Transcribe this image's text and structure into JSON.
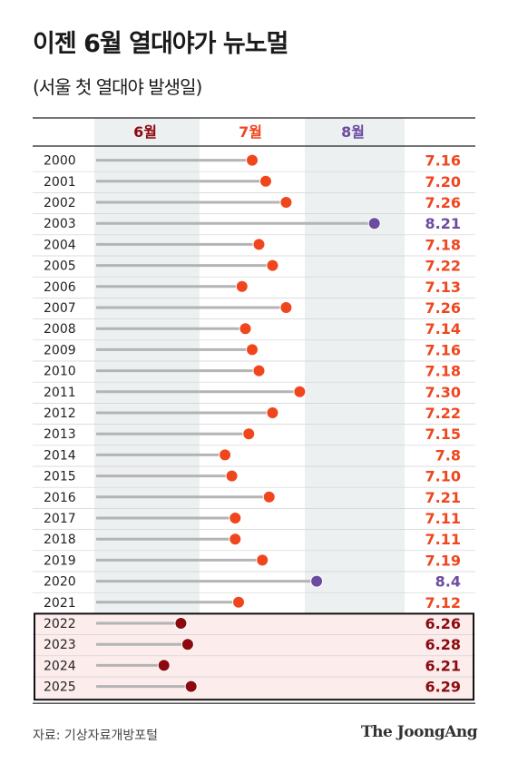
{
  "header": {
    "title": "이젠 6월 열대야가 뉴노멀",
    "subtitle": "(서울 첫 열대야 발생일)"
  },
  "footer": {
    "source": "자료: 기상자료개방포털",
    "brand": "The JoongAng"
  },
  "colors": {
    "june": "#8b0a10",
    "july": "#f0461e",
    "august": "#6b4ca0",
    "stem": "#b4b4b4",
    "band_gray": "#edf0f0",
    "band_pink": "#fcecec",
    "highlight_border": "#111111"
  },
  "chart_data": {
    "type": "dot-plot",
    "month_headers": [
      "6월",
      "7월",
      "8월"
    ],
    "highlighted_rows": [
      "2022",
      "2023",
      "2024",
      "2025"
    ],
    "rows": [
      {
        "year": "2000",
        "month": 7,
        "day": 16,
        "label": "7.16"
      },
      {
        "year": "2001",
        "month": 7,
        "day": 20,
        "label": "7.20"
      },
      {
        "year": "2002",
        "month": 7,
        "day": 26,
        "label": "7.26"
      },
      {
        "year": "2003",
        "month": 8,
        "day": 21,
        "label": "8.21"
      },
      {
        "year": "2004",
        "month": 7,
        "day": 18,
        "label": "7.18"
      },
      {
        "year": "2005",
        "month": 7,
        "day": 22,
        "label": "7.22"
      },
      {
        "year": "2006",
        "month": 7,
        "day": 13,
        "label": "7.13"
      },
      {
        "year": "2007",
        "month": 7,
        "day": 26,
        "label": "7.26"
      },
      {
        "year": "2008",
        "month": 7,
        "day": 14,
        "label": "7.14"
      },
      {
        "year": "2009",
        "month": 7,
        "day": 16,
        "label": "7.16"
      },
      {
        "year": "2010",
        "month": 7,
        "day": 18,
        "label": "7.18"
      },
      {
        "year": "2011",
        "month": 7,
        "day": 30,
        "label": "7.30"
      },
      {
        "year": "2012",
        "month": 7,
        "day": 22,
        "label": "7.22"
      },
      {
        "year": "2013",
        "month": 7,
        "day": 15,
        "label": "7.15"
      },
      {
        "year": "2014",
        "month": 7,
        "day": 8,
        "label": "7.8"
      },
      {
        "year": "2015",
        "month": 7,
        "day": 10,
        "label": "7.10"
      },
      {
        "year": "2016",
        "month": 7,
        "day": 21,
        "label": "7.21"
      },
      {
        "year": "2017",
        "month": 7,
        "day": 11,
        "label": "7.11"
      },
      {
        "year": "2018",
        "month": 7,
        "day": 11,
        "label": "7.11"
      },
      {
        "year": "2019",
        "month": 7,
        "day": 19,
        "label": "7.19"
      },
      {
        "year": "2020",
        "month": 8,
        "day": 4,
        "label": "8.4"
      },
      {
        "year": "2021",
        "month": 7,
        "day": 12,
        "label": "7.12"
      },
      {
        "year": "2022",
        "month": 6,
        "day": 26,
        "label": "6.26"
      },
      {
        "year": "2023",
        "month": 6,
        "day": 28,
        "label": "6.28"
      },
      {
        "year": "2024",
        "month": 6,
        "day": 21,
        "label": "6.21"
      },
      {
        "year": "2025",
        "month": 6,
        "day": 29,
        "label": "6.29"
      }
    ]
  }
}
